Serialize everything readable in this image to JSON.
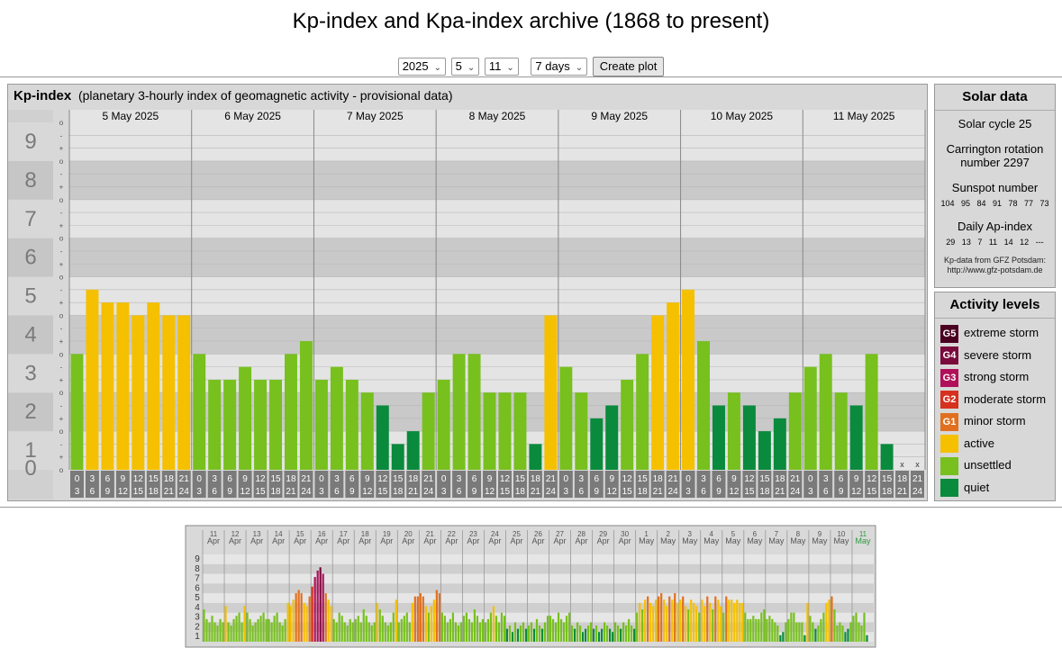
{
  "page": {
    "title": "Kp-index and Kpa-index archive (1868 to present)",
    "controls": {
      "year": "2025",
      "month": "5",
      "day": "11",
      "range": "7 days",
      "button": "Create plot"
    }
  },
  "kp_panel": {
    "title": "Kp-index",
    "subtitle": "(planetary 3-hourly index of geomagnetic activity - provisional data)"
  },
  "solar": {
    "title": "Solar data",
    "cycle": "Solar cycle 25",
    "carrington": "Carrington rotation number 2297",
    "sunspot_label": "Sunspot number",
    "sunspot_values": "104 95 84 91 78 77 73",
    "ap_label": "Daily Ap-index",
    "ap_values": "29 13 7 11 14 12 ---",
    "source": "Kp-data from GFZ Potsdam:",
    "source_url": "http://www.gfz-potsdam.de"
  },
  "activity": {
    "title": "Activity levels",
    "levels": [
      {
        "code": "G5",
        "label": "extreme storm",
        "color": "#4a0020"
      },
      {
        "code": "G4",
        "label": "severe storm",
        "color": "#7a0a3c"
      },
      {
        "code": "G3",
        "label": "strong storm",
        "color": "#b0105a"
      },
      {
        "code": "G2",
        "label": "moderate storm",
        "color": "#d6301e"
      },
      {
        "code": "G1",
        "label": "minor storm",
        "color": "#e07020"
      },
      {
        "code": "",
        "label": "active",
        "color": "#f5c000"
      },
      {
        "code": "",
        "label": "unsettled",
        "color": "#77c01e"
      },
      {
        "code": "",
        "label": "quiet",
        "color": "#0a8a3c"
      }
    ]
  },
  "chart_data": [
    {
      "type": "bar",
      "days": [
        "5 May 2025",
        "6 May 2025",
        "7 May 2025",
        "8 May 2025",
        "9 May 2025",
        "10 May 2025",
        "11 May 2025"
      ],
      "yticks": [
        "0",
        "1",
        "2",
        "3",
        "4",
        "5",
        "6",
        "7",
        "8",
        "9"
      ],
      "minor_ticks": [
        "o",
        "-",
        "+"
      ],
      "hours_top": [
        "0",
        "3",
        "6",
        "9",
        "12",
        "15",
        "18",
        "21"
      ],
      "hours_bottom": [
        "3",
        "6",
        "9",
        "12",
        "15",
        "18",
        "21",
        "24"
      ],
      "missing_marker": "x",
      "ylim": [
        0,
        9
      ],
      "values": [
        3.0,
        4.667,
        4.333,
        4.333,
        4.0,
        4.333,
        4.0,
        4.0,
        3.0,
        2.333,
        2.333,
        2.667,
        2.333,
        2.333,
        3.0,
        3.333,
        2.333,
        2.667,
        2.333,
        2.0,
        1.667,
        0.667,
        1.0,
        2.0,
        2.333,
        3.0,
        3.0,
        2.0,
        2.0,
        2.0,
        0.667,
        4.0,
        2.667,
        2.0,
        1.333,
        1.667,
        2.333,
        3.0,
        4.0,
        4.333,
        4.667,
        3.333,
        1.667,
        2.0,
        1.667,
        1.0,
        1.333,
        2.0,
        2.667,
        3.0,
        2.0,
        1.667,
        3.0,
        0.667,
        null,
        null
      ]
    },
    {
      "type": "bar",
      "title": "",
      "day_labels": [
        [
          "11",
          "Apr"
        ],
        [
          "12",
          "Apr"
        ],
        [
          "13",
          "Apr"
        ],
        [
          "14",
          "Apr"
        ],
        [
          "15",
          "Apr"
        ],
        [
          "16",
          "Apr"
        ],
        [
          "17",
          "Apr"
        ],
        [
          "18",
          "Apr"
        ],
        [
          "19",
          "Apr"
        ],
        [
          "20",
          "Apr"
        ],
        [
          "21",
          "Apr"
        ],
        [
          "22",
          "Apr"
        ],
        [
          "23",
          "Apr"
        ],
        [
          "24",
          "Apr"
        ],
        [
          "25",
          "Apr"
        ],
        [
          "26",
          "Apr"
        ],
        [
          "27",
          "Apr"
        ],
        [
          "28",
          "Apr"
        ],
        [
          "29",
          "Apr"
        ],
        [
          "30",
          "Apr"
        ],
        [
          "1",
          "May"
        ],
        [
          "2",
          "May"
        ],
        [
          "3",
          "May"
        ],
        [
          "4",
          "May"
        ],
        [
          "5",
          "May"
        ],
        [
          "6",
          "May"
        ],
        [
          "7",
          "May"
        ],
        [
          "8",
          "May"
        ],
        [
          "9",
          "May"
        ],
        [
          "10",
          "May"
        ],
        [
          "11",
          "May"
        ]
      ],
      "yticks": [
        "1",
        "2",
        "3",
        "4",
        "5",
        "6",
        "7",
        "8",
        "9"
      ],
      "ylim": [
        0,
        9
      ],
      "daily_values": [
        [
          3.33,
          2.33,
          2.0,
          2.67,
          2.0,
          1.67,
          2.33,
          2.0
        ],
        [
          3.67,
          2.0,
          1.67,
          2.33,
          2.67,
          3.0,
          2.0,
          3.67
        ],
        [
          3.0,
          2.33,
          1.67,
          2.0,
          2.33,
          2.67,
          3.0,
          2.33
        ],
        [
          2.33,
          2.0,
          2.67,
          3.0,
          2.0,
          1.67,
          2.33,
          4.0
        ],
        [
          3.67,
          4.33,
          5.0,
          5.33,
          5.0,
          4.0,
          3.67,
          4.67
        ],
        [
          5.67,
          6.67,
          7.33,
          7.67,
          7.0,
          5.0,
          4.33,
          3.67
        ],
        [
          2.33,
          2.0,
          3.0,
          2.67,
          2.0,
          1.67,
          2.33,
          2.0
        ],
        [
          2.33,
          2.67,
          2.0,
          3.33,
          2.67,
          2.0,
          1.67,
          2.0
        ],
        [
          4.0,
          3.33,
          2.67,
          2.0,
          1.67,
          2.0,
          3.0,
          4.33
        ],
        [
          2.0,
          2.33,
          2.67,
          3.0,
          2.0,
          4.0,
          4.67,
          4.67
        ],
        [
          5.0,
          4.67,
          3.67,
          3.0,
          3.67,
          4.33,
          5.33,
          5.0
        ],
        [
          3.0,
          2.67,
          2.0,
          2.33,
          3.0,
          2.0,
          1.67,
          2.0
        ],
        [
          2.67,
          3.0,
          2.33,
          2.0,
          3.33,
          2.67,
          2.0,
          2.33
        ],
        [
          2.0,
          2.33,
          3.0,
          3.67,
          2.67,
          2.0,
          3.0,
          2.67
        ],
        [
          1.33,
          1.67,
          1.0,
          2.0,
          1.33,
          1.67,
          2.0,
          1.33
        ],
        [
          1.67,
          2.0,
          1.33,
          2.33,
          1.67,
          1.33,
          2.0,
          2.67
        ],
        [
          2.67,
          2.33,
          2.0,
          3.0,
          2.33,
          2.0,
          2.67,
          3.0
        ],
        [
          1.67,
          1.33,
          2.0,
          1.67,
          1.0,
          1.33,
          1.67,
          2.0
        ],
        [
          1.33,
          1.67,
          1.0,
          1.33,
          2.0,
          1.67,
          1.33,
          1.0
        ],
        [
          2.0,
          1.67,
          1.33,
          2.0,
          1.67,
          2.33,
          1.67,
          1.33
        ],
        [
          3.0,
          4.0,
          3.33,
          4.33,
          4.67,
          4.0,
          3.67,
          4.33
        ],
        [
          4.67,
          5.0,
          4.33,
          3.67,
          4.67,
          4.33,
          5.0,
          4.0
        ],
        [
          4.33,
          4.67,
          3.67,
          3.33,
          4.33,
          4.0,
          3.67,
          3.0
        ],
        [
          4.33,
          3.67,
          4.67,
          4.0,
          3.33,
          4.67,
          4.33,
          3.67
        ],
        [
          3.0,
          4.67,
          4.33,
          4.33,
          4.0,
          4.33,
          4.0,
          4.0
        ],
        [
          3.0,
          2.33,
          2.33,
          2.67,
          2.33,
          2.33,
          3.0,
          3.33
        ],
        [
          2.33,
          2.67,
          2.33,
          2.0,
          1.67,
          0.67,
          1.0,
          2.0
        ],
        [
          2.33,
          3.0,
          3.0,
          2.0,
          2.0,
          2.0,
          0.67,
          4.0
        ],
        [
          2.67,
          2.0,
          1.33,
          1.67,
          2.33,
          3.0,
          4.0,
          4.33
        ],
        [
          4.67,
          3.33,
          1.67,
          2.0,
          1.67,
          1.0,
          1.33,
          2.0
        ],
        [
          2.67,
          3.0,
          2.0,
          1.67,
          3.0,
          0.67,
          0,
          0
        ]
      ]
    }
  ]
}
